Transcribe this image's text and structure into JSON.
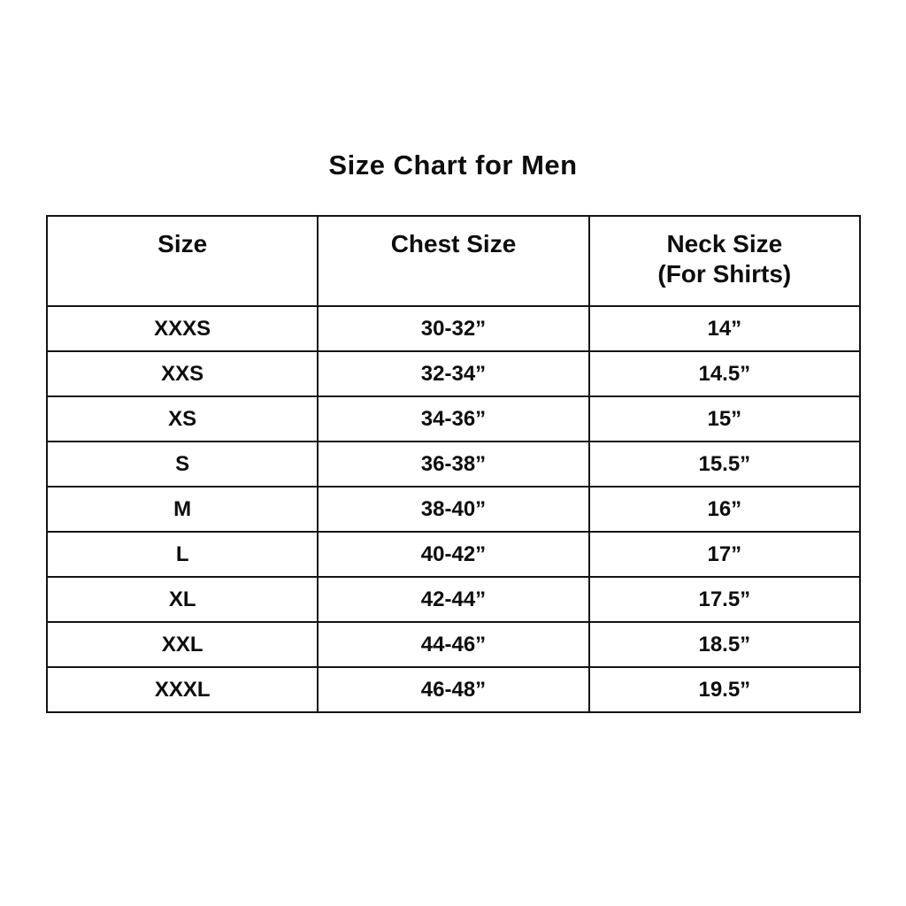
{
  "title": "Size Chart for Men",
  "header": {
    "size": "Size",
    "chest": "Chest Size",
    "neck_line1": "Neck Size",
    "neck_line2": "(For Shirts)"
  },
  "chart_data": {
    "type": "table",
    "title": "Size Chart for Men",
    "columns": [
      "Size",
      "Chest Size",
      "Neck Size (For Shirts)"
    ],
    "rows": [
      [
        "XXXS",
        "30-32”",
        "14”"
      ],
      [
        "XXS",
        "32-34”",
        "14.5”"
      ],
      [
        "XS",
        "34-36”",
        "15”"
      ],
      [
        "S",
        "36-38”",
        "15.5”"
      ],
      [
        "M",
        "38-40”",
        "16”"
      ],
      [
        "L",
        "40-42”",
        "17”"
      ],
      [
        "XL",
        "42-44”",
        "17.5”"
      ],
      [
        "XXL",
        "44-46”",
        "18.5”"
      ],
      [
        "XXXL",
        "46-48”",
        "19.5”"
      ]
    ],
    "layout": {
      "text_color": "#0d0d0d",
      "border_color": "#141414",
      "background": "#ffffff"
    }
  }
}
